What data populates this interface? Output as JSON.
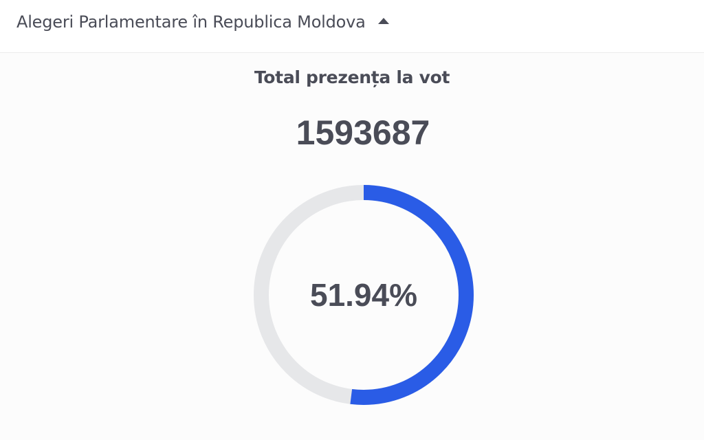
{
  "header": {
    "title": "Alegeri Parlamentare în Republica Moldova",
    "toggle_icon": "caret-up-icon"
  },
  "turnout": {
    "subtitle": "Total prezența la vot",
    "total": "1593687",
    "percent_label": "51.94%",
    "percent_value": 51.94
  },
  "colors": {
    "progress": "#2a5ce6",
    "track": "#e6e7e9",
    "text": "#4a4c57"
  }
}
